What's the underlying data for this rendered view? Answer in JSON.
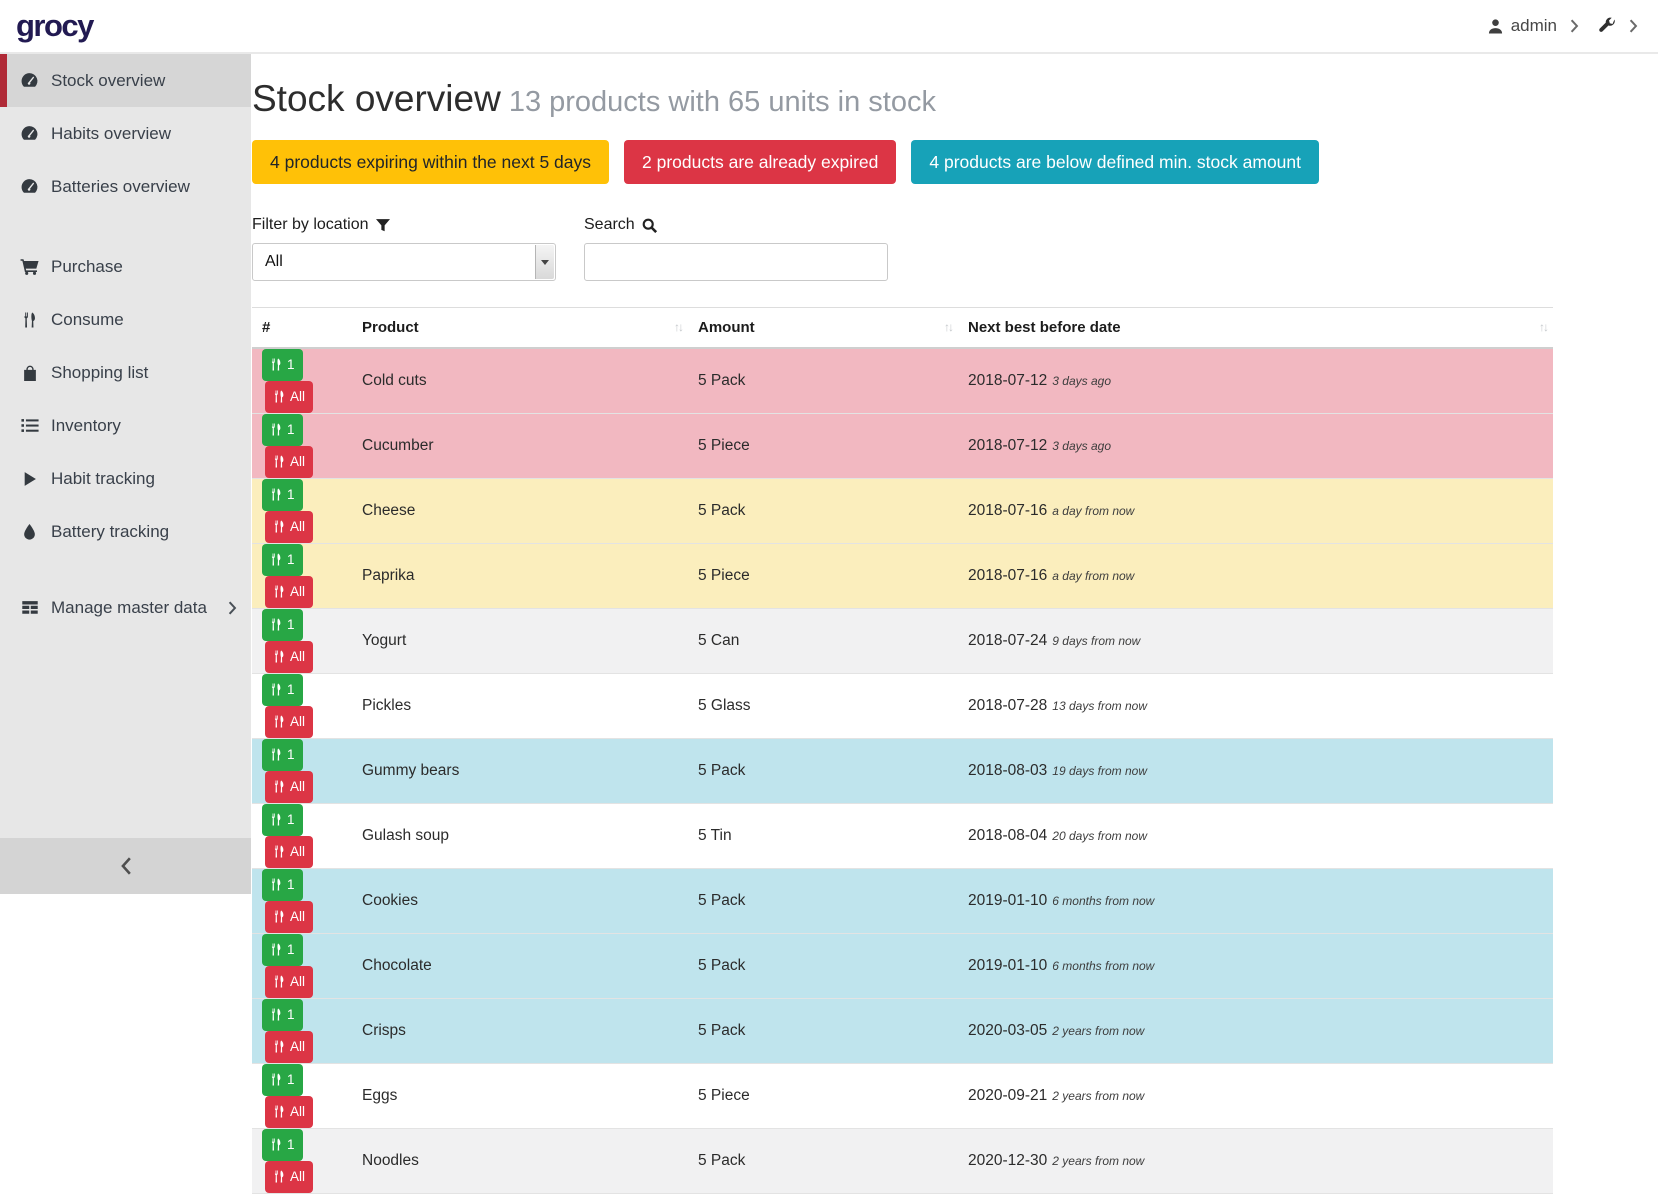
{
  "topbar": {
    "logo": "grocy",
    "user_label": "admin"
  },
  "sidebar": {
    "items": [
      {
        "label": "Stock overview",
        "icon": "tachometer-icon",
        "active": true,
        "gap": 0,
        "chevron": false
      },
      {
        "label": "Habits overview",
        "icon": "tachometer-icon",
        "active": false,
        "gap": 0,
        "chevron": false
      },
      {
        "label": "Batteries overview",
        "icon": "tachometer-icon",
        "active": false,
        "gap": 0,
        "chevron": false
      },
      {
        "label": "Purchase",
        "icon": "cart-icon",
        "active": false,
        "gap": 1,
        "chevron": false
      },
      {
        "label": "Consume",
        "icon": "utensils-icon",
        "active": false,
        "gap": 0,
        "chevron": false
      },
      {
        "label": "Shopping list",
        "icon": "shopping-bag-icon",
        "active": false,
        "gap": 0,
        "chevron": false
      },
      {
        "label": "Inventory",
        "icon": "list-icon",
        "active": false,
        "gap": 0,
        "chevron": false
      },
      {
        "label": "Habit tracking",
        "icon": "play-icon",
        "active": false,
        "gap": 0,
        "chevron": false
      },
      {
        "label": "Battery tracking",
        "icon": "fire-icon",
        "active": false,
        "gap": 0,
        "chevron": false
      },
      {
        "label": "Manage master data",
        "icon": "table-icon",
        "active": false,
        "gap": 2,
        "chevron": true
      }
    ]
  },
  "page": {
    "title": "Stock overview",
    "subtitle": "13 products with 65 units in stock"
  },
  "badges": [
    {
      "label": "4 products expiring within the next 5 days",
      "type": "warning"
    },
    {
      "label": "2 products are already expired",
      "type": "danger"
    },
    {
      "label": "4 products are below defined min. stock amount",
      "type": "info"
    }
  ],
  "filters": {
    "location_label": "Filter by location",
    "location_value": "All",
    "search_label": "Search",
    "search_value": ""
  },
  "table": {
    "columns": [
      {
        "label": "#",
        "sortable": false
      },
      {
        "label": "Product",
        "sortable": true
      },
      {
        "label": "Amount",
        "sortable": true
      },
      {
        "label": "Next best before date",
        "sortable": true
      }
    ],
    "actions": {
      "one": "1",
      "all": "All"
    },
    "rows": [
      {
        "product": "Cold cuts",
        "amount": "5 Pack",
        "date": "2018-07-12",
        "timeago": "3 days ago",
        "highlight": "expired"
      },
      {
        "product": "Cucumber",
        "amount": "5 Piece",
        "date": "2018-07-12",
        "timeago": "3 days ago",
        "highlight": "expired"
      },
      {
        "product": "Cheese",
        "amount": "5 Pack",
        "date": "2018-07-16",
        "timeago": "a day from now",
        "highlight": "expiring"
      },
      {
        "product": "Paprika",
        "amount": "5 Piece",
        "date": "2018-07-16",
        "timeago": "a day from now",
        "highlight": "expiring"
      },
      {
        "product": "Yogurt",
        "amount": "5 Can",
        "date": "2018-07-24",
        "timeago": "9 days from now",
        "highlight": "stripe"
      },
      {
        "product": "Pickles",
        "amount": "5 Glass",
        "date": "2018-07-28",
        "timeago": "13 days from now",
        "highlight": "none"
      },
      {
        "product": "Gummy bears",
        "amount": "5 Pack",
        "date": "2018-08-03",
        "timeago": "19 days from now",
        "highlight": "below-min"
      },
      {
        "product": "Gulash soup",
        "amount": "5 Tin",
        "date": "2018-08-04",
        "timeago": "20 days from now",
        "highlight": "none"
      },
      {
        "product": "Cookies",
        "amount": "5 Pack",
        "date": "2019-01-10",
        "timeago": "6 months from now",
        "highlight": "below-min"
      },
      {
        "product": "Chocolate",
        "amount": "5 Pack",
        "date": "2019-01-10",
        "timeago": "6 months from now",
        "highlight": "below-min"
      },
      {
        "product": "Crisps",
        "amount": "5 Pack",
        "date": "2020-03-05",
        "timeago": "2 years from now",
        "highlight": "below-min"
      },
      {
        "product": "Eggs",
        "amount": "5 Piece",
        "date": "2020-09-21",
        "timeago": "2 years from now",
        "highlight": "none"
      },
      {
        "product": "Noodles",
        "amount": "5 Pack",
        "date": "2020-12-30",
        "timeago": "2 years from now",
        "highlight": "stripe"
      }
    ]
  },
  "colors": {
    "logo_navy": "#221a52",
    "accent_red": "#b02a37",
    "badge_warning": "#ffc107",
    "badge_danger": "#dc3545",
    "badge_info": "#17a2b8",
    "button_green": "#28a745",
    "button_red": "#dc3545",
    "expired_row": "#f2b8c1",
    "expiring_row": "#fbeebd",
    "below_min_row": "#bfe4ed",
    "stripe_row": "#f1f1f2"
  }
}
